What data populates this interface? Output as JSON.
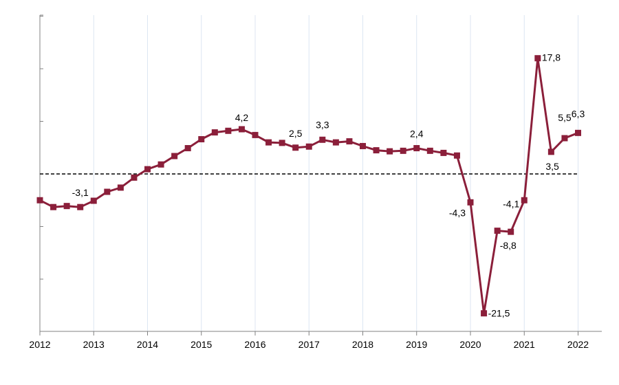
{
  "chart_data": {
    "type": "line",
    "title": "",
    "xlabel": "",
    "ylabel": "",
    "x_ticks": [
      "2012",
      "2013",
      "2014",
      "2015",
      "2016",
      "2017",
      "2018",
      "2019",
      "2020",
      "2021",
      "2022"
    ],
    "ylim": [
      -30,
      25
    ],
    "grid": "vertical",
    "reference_line": 0,
    "series": [
      {
        "color": "#8b1f3a",
        "x": [
          2012.0,
          2012.25,
          2012.5,
          2012.75,
          2013.0,
          2013.25,
          2013.5,
          2013.75,
          2014.0,
          2014.25,
          2014.5,
          2014.75,
          2015.0,
          2015.25,
          2015.5,
          2015.75,
          2016.0,
          2016.25,
          2016.5,
          2016.75,
          2017.0,
          2017.25,
          2017.5,
          2017.75,
          2018.0,
          2018.25,
          2018.5,
          2018.75,
          2019.0,
          2019.25,
          2019.5,
          2019.75,
          2020.0,
          2020.25,
          2020.5,
          2020.75,
          2021.0,
          2021.25,
          2021.5,
          2021.75,
          2022.0
        ],
        "y": [
          -5.0,
          -6.3,
          -6.1,
          -6.3,
          -5.1,
          -3.4,
          -2.6,
          -0.7,
          0.9,
          1.8,
          3.4,
          4.9,
          6.6,
          7.9,
          8.2,
          8.5,
          7.4,
          6.0,
          5.9,
          5.0,
          5.2,
          6.5,
          6.0,
          6.2,
          5.3,
          4.5,
          4.3,
          4.4,
          4.9,
          4.4,
          4.0,
          3.5,
          -5.4,
          -26.5,
          -10.8,
          -11.0,
          -5.0,
          22.0,
          4.2,
          6.8,
          7.8
        ]
      }
    ],
    "annotations": [
      {
        "text": "-3,1",
        "x": 2012.75,
        "y": -6.3
      },
      {
        "text": "4,2",
        "x": 2015.75,
        "y": 8.5
      },
      {
        "text": "2,5",
        "x": 2016.75,
        "y": 5.0
      },
      {
        "text": "3,3",
        "x": 2017.25,
        "y": 6.5
      },
      {
        "text": "2,4",
        "x": 2019.0,
        "y": 4.9
      },
      {
        "text": "-4,3",
        "x": 2020.0,
        "y": -5.4
      },
      {
        "text": "-21,5",
        "x": 2020.25,
        "y": -26.5
      },
      {
        "text": "-8,8",
        "x": 2020.75,
        "y": -11.0
      },
      {
        "text": "-4,1",
        "x": 2021.0,
        "y": -5.0
      },
      {
        "text": "17,8",
        "x": 2021.25,
        "y": 22.0
      },
      {
        "text": "3,5",
        "x": 2021.5,
        "y": 4.2
      },
      {
        "text": "5,5",
        "x": 2021.75,
        "y": 6.8
      },
      {
        "text": "6,3",
        "x": 2022.0,
        "y": 7.8
      }
    ]
  }
}
